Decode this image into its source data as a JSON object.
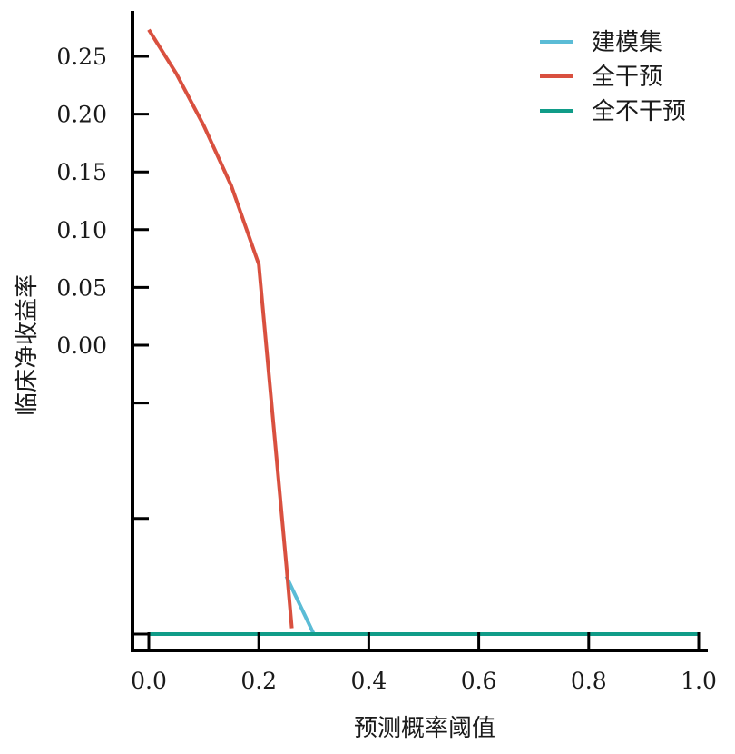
{
  "chart_data": {
    "type": "line",
    "title": "",
    "xlabel": "预测概率阈值",
    "ylabel": "临床净收益率",
    "xlim": [
      -0.03,
      1.02
    ],
    "ylim": [
      -0.25,
      0.29
    ],
    "x_ticks": [
      0.0,
      0.2,
      0.4,
      0.6,
      0.8,
      1.0
    ],
    "x_tick_labels": [
      "0.0",
      "0.2",
      "0.4",
      "0.6",
      "0.8",
      "1.0"
    ],
    "y_ticks": [
      0.25,
      0.2,
      0.15,
      0.1,
      0.05,
      0.0,
      -0.05,
      -0.15,
      -0.25
    ],
    "y_tick_labels": [
      "0.25",
      "0.20",
      "0.15",
      "0.10",
      "0.05",
      "0.00",
      "",
      "",
      ""
    ],
    "grid": false,
    "legend_position": "top-right",
    "series": [
      {
        "name": "建模集",
        "color": "#5bbcd6",
        "x": [
          0.25,
          0.3,
          1.0
        ],
        "y": [
          -0.2,
          -0.25,
          -0.25
        ]
      },
      {
        "name": "全干预",
        "color": "#d9503f",
        "x": [
          0.0,
          0.05,
          0.1,
          0.15,
          0.2,
          0.25,
          0.26
        ],
        "y": [
          0.273,
          0.235,
          0.19,
          0.138,
          0.07,
          -0.19,
          -0.245
        ]
      },
      {
        "name": "全不干预",
        "color": "#109c88",
        "x": [
          0.0,
          1.0
        ],
        "y": [
          -0.25,
          -0.25
        ]
      }
    ]
  }
}
